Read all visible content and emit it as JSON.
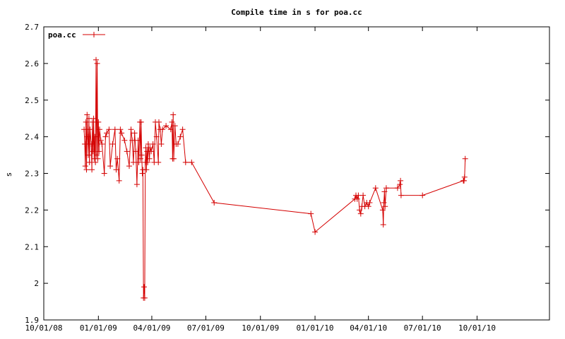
{
  "chart_data": {
    "type": "line",
    "title": "Compile time in s for poa.cc",
    "xlabel": "",
    "ylabel": "s",
    "ylim": [
      1.9,
      2.7
    ],
    "yticks": [
      "1.9",
      "2",
      "2.1",
      "2.2",
      "2.3",
      "2.4",
      "2.5",
      "2.6",
      "2.7"
    ],
    "xlim": [
      "2008-10-01",
      "2011-01-31"
    ],
    "xticks": [
      {
        "date": "2008-10-01",
        "label": "10/01/08"
      },
      {
        "date": "2009-01-01",
        "label": "01/01/09"
      },
      {
        "date": "2009-04-01",
        "label": "04/01/09"
      },
      {
        "date": "2009-07-01",
        "label": "07/01/09"
      },
      {
        "date": "2009-10-01",
        "label": "10/01/09"
      },
      {
        "date": "2010-01-01",
        "label": "01/01/10"
      },
      {
        "date": "2010-04-01",
        "label": "04/01/10"
      },
      {
        "date": "2010-07-01",
        "label": "07/01/10"
      },
      {
        "date": "2010-10-01",
        "label": "10/01/10"
      }
    ],
    "legend": "top-left",
    "series": [
      {
        "name": "poa.cc",
        "color": "#d40000",
        "points": [
          [
            "2008-12-08",
            2.42
          ],
          [
            "2008-12-09",
            2.38
          ],
          [
            "2008-12-10",
            2.32
          ],
          [
            "2008-12-11",
            2.44
          ],
          [
            "2008-12-12",
            2.31
          ],
          [
            "2008-12-13",
            2.46
          ],
          [
            "2008-12-14",
            2.4
          ],
          [
            "2008-12-15",
            2.35
          ],
          [
            "2008-12-16",
            2.45
          ],
          [
            "2008-12-17",
            2.33
          ],
          [
            "2008-12-18",
            2.42
          ],
          [
            "2008-12-20",
            2.38
          ],
          [
            "2008-12-21",
            2.31
          ],
          [
            "2008-12-22",
            2.44
          ],
          [
            "2008-12-23",
            2.36
          ],
          [
            "2008-12-24",
            2.45
          ],
          [
            "2008-12-25",
            2.34
          ],
          [
            "2008-12-26",
            2.4
          ],
          [
            "2008-12-27",
            2.33
          ],
          [
            "2008-12-28",
            2.61
          ],
          [
            "2008-12-29",
            2.35
          ],
          [
            "2008-12-30",
            2.6
          ],
          [
            "2008-12-31",
            2.34
          ],
          [
            "2009-01-01",
            2.44
          ],
          [
            "2009-01-02",
            2.36
          ],
          [
            "2009-01-03",
            2.42
          ],
          [
            "2009-01-05",
            2.39
          ],
          [
            "2009-01-07",
            2.38
          ],
          [
            "2009-01-11",
            2.3
          ],
          [
            "2009-01-13",
            2.4
          ],
          [
            "2009-01-15",
            2.41
          ],
          [
            "2009-01-19",
            2.42
          ],
          [
            "2009-01-21",
            2.32
          ],
          [
            "2009-01-25",
            2.38
          ],
          [
            "2009-01-29",
            2.42
          ],
          [
            "2009-01-31",
            2.31
          ],
          [
            "2009-02-02",
            2.34
          ],
          [
            "2009-02-05",
            2.28
          ],
          [
            "2009-02-07",
            2.42
          ],
          [
            "2009-02-09",
            2.41
          ],
          [
            "2009-02-14",
            2.39
          ],
          [
            "2009-02-18",
            2.36
          ],
          [
            "2009-02-22",
            2.32
          ],
          [
            "2009-02-25",
            2.42
          ],
          [
            "2009-02-27",
            2.39
          ],
          [
            "2009-03-01",
            2.33
          ],
          [
            "2009-03-03",
            2.41
          ],
          [
            "2009-03-05",
            2.36
          ],
          [
            "2009-03-07",
            2.27
          ],
          [
            "2009-03-09",
            2.39
          ],
          [
            "2009-03-10",
            2.33
          ],
          [
            "2009-03-12",
            2.44
          ],
          [
            "2009-03-13",
            2.34
          ],
          [
            "2009-03-14",
            2.44
          ],
          [
            "2009-03-15",
            2.35
          ],
          [
            "2009-03-16",
            2.3
          ],
          [
            "2009-03-17",
            2.31
          ],
          [
            "2009-03-18",
            1.96
          ],
          [
            "2009-03-19",
            1.99
          ],
          [
            "2009-03-20",
            1.96
          ],
          [
            "2009-03-21",
            2.33
          ],
          [
            "2009-03-22",
            2.37
          ],
          [
            "2009-03-23",
            2.31
          ],
          [
            "2009-03-24",
            2.36
          ],
          [
            "2009-03-25",
            2.33
          ],
          [
            "2009-03-26",
            2.38
          ],
          [
            "2009-03-28",
            2.34
          ],
          [
            "2009-03-29",
            2.37
          ],
          [
            "2009-03-31",
            2.36
          ],
          [
            "2009-04-03",
            2.38
          ],
          [
            "2009-04-05",
            2.33
          ],
          [
            "2009-04-07",
            2.44
          ],
          [
            "2009-04-09",
            2.4
          ],
          [
            "2009-04-12",
            2.33
          ],
          [
            "2009-04-13",
            2.44
          ],
          [
            "2009-04-15",
            2.42
          ],
          [
            "2009-04-17",
            2.38
          ],
          [
            "2009-04-19",
            2.42
          ],
          [
            "2009-04-25",
            2.43
          ],
          [
            "2009-05-03",
            2.42
          ],
          [
            "2009-05-05",
            2.44
          ],
          [
            "2009-05-06",
            2.34
          ],
          [
            "2009-05-07",
            2.46
          ],
          [
            "2009-05-08",
            2.34
          ],
          [
            "2009-05-10",
            2.43
          ],
          [
            "2009-05-12",
            2.38
          ],
          [
            "2009-05-15",
            2.38
          ],
          [
            "2009-05-19",
            2.4
          ],
          [
            "2009-05-23",
            2.42
          ],
          [
            "2009-05-28",
            2.33
          ],
          [
            "2009-06-07",
            2.33
          ],
          [
            "2009-07-15",
            2.22
          ],
          [
            "2009-12-25",
            2.19
          ],
          [
            "2010-01-01",
            2.14
          ],
          [
            "2010-03-09",
            2.23
          ],
          [
            "2010-03-11",
            2.24
          ],
          [
            "2010-03-13",
            2.23
          ],
          [
            "2010-03-15",
            2.24
          ],
          [
            "2010-03-17",
            2.2
          ],
          [
            "2010-03-19",
            2.19
          ],
          [
            "2010-03-21",
            2.21
          ],
          [
            "2010-03-23",
            2.24
          ],
          [
            "2010-03-26",
            2.21
          ],
          [
            "2010-03-29",
            2.22
          ],
          [
            "2010-04-01",
            2.21
          ],
          [
            "2010-04-03",
            2.22
          ],
          [
            "2010-04-13",
            2.26
          ],
          [
            "2010-04-25",
            2.2
          ],
          [
            "2010-04-26",
            2.16
          ],
          [
            "2010-04-27",
            2.22
          ],
          [
            "2010-04-28",
            2.25
          ],
          [
            "2010-04-29",
            2.21
          ],
          [
            "2010-05-01",
            2.26
          ],
          [
            "2010-05-20",
            2.26
          ],
          [
            "2010-05-24",
            2.27
          ],
          [
            "2010-05-25",
            2.28
          ],
          [
            "2010-05-26",
            2.24
          ],
          [
            "2010-07-01",
            2.24
          ],
          [
            "2010-09-08",
            2.28
          ],
          [
            "2010-09-09",
            2.28
          ],
          [
            "2010-09-10",
            2.29
          ],
          [
            "2010-09-11",
            2.34
          ]
        ]
      }
    ],
    "grid": false
  }
}
